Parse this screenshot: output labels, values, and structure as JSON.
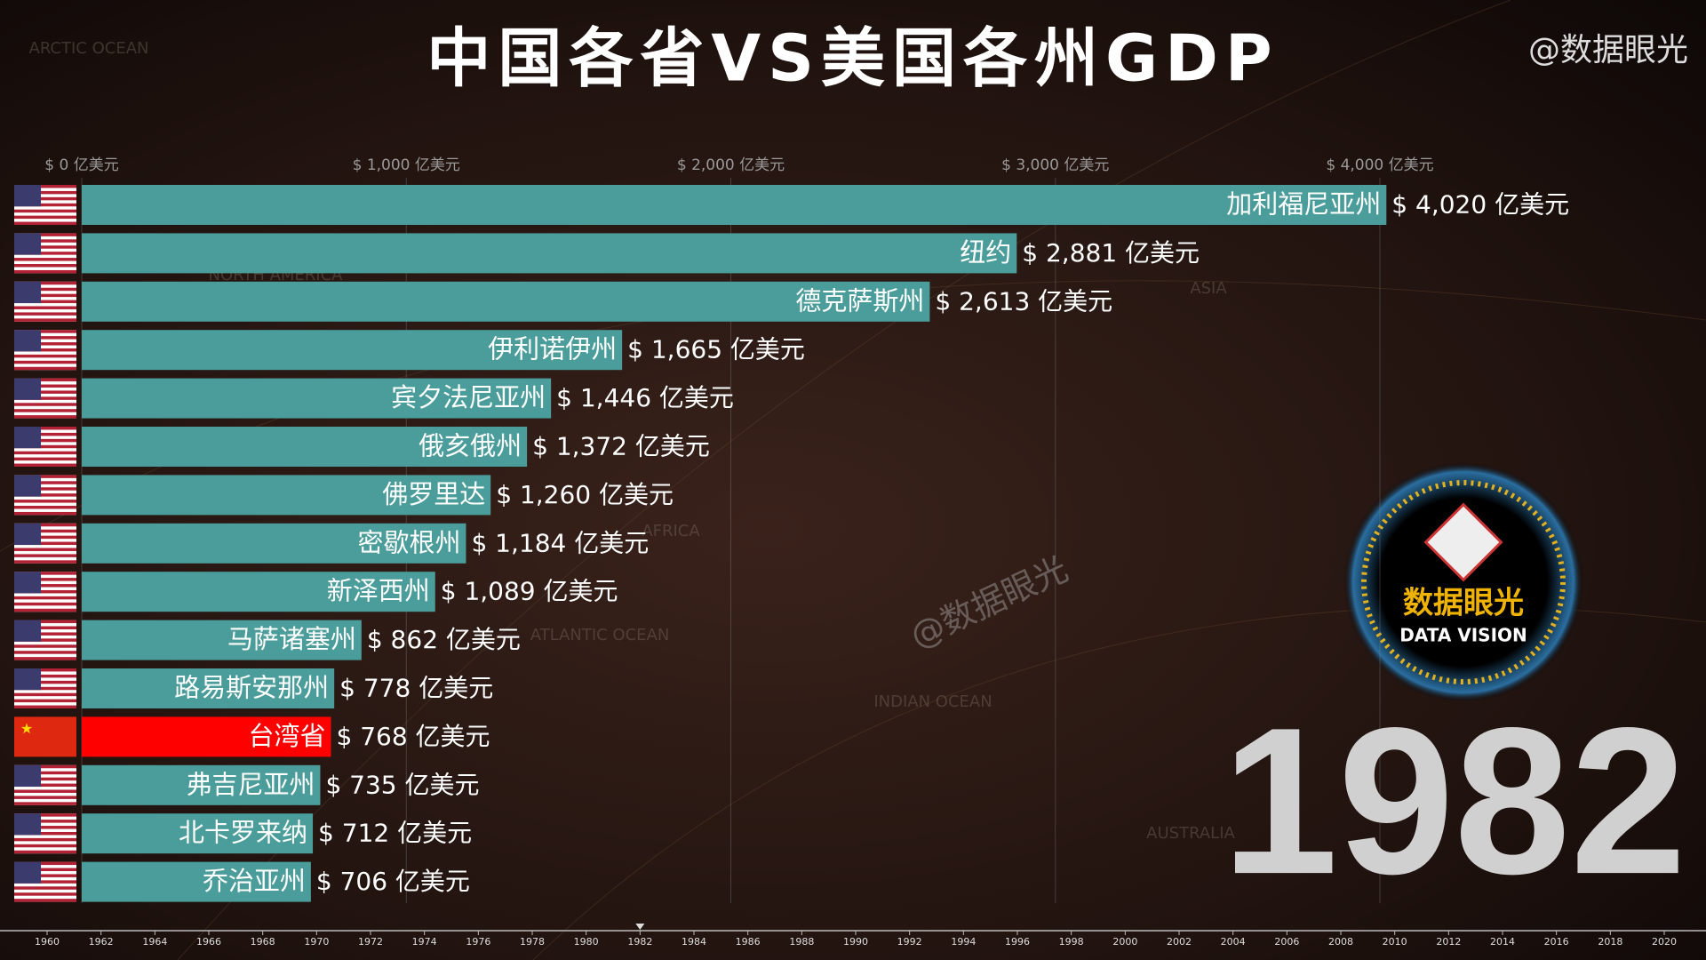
{
  "chart_data": {
    "type": "bar",
    "orientation": "horizontal",
    "title": "中国各省VS美国各州GDP",
    "categories": [
      "加利福尼亚州",
      "纽约",
      "德克萨斯州",
      "伊利诺伊州",
      "宾夕法尼亚州",
      "俄亥俄州",
      "佛罗里达",
      "密歇根州",
      "新泽西州",
      "马萨诸塞州",
      "路易斯安那州",
      "台湾省",
      "弗吉尼亚州",
      "北卡罗来纳",
      "乔治亚州"
    ],
    "values": [
      4020,
      2881,
      2613,
      1665,
      1446,
      1372,
      1260,
      1184,
      1089,
      862,
      778,
      768,
      735,
      712,
      706
    ],
    "value_labels": [
      "$ 4,020 亿美元",
      "$ 2,881 亿美元",
      "$ 2,613 亿美元",
      "$ 1,665 亿美元",
      "$ 1,446 亿美元",
      "$ 1,372 亿美元",
      "$ 1,260 亿美元",
      "$ 1,184 亿美元",
      "$ 1,089 亿美元",
      "$ 862 亿美元",
      "$ 778 亿美元",
      "$ 768 亿美元",
      "$ 735 亿美元",
      "$ 712 亿美元",
      "$ 706 亿美元"
    ],
    "colors": [
      "#4a9d9a",
      "#4a9d9a",
      "#4a9d9a",
      "#4a9d9a",
      "#4a9d9a",
      "#4a9d9a",
      "#4a9d9a",
      "#4a9d9a",
      "#4a9d9a",
      "#4a9d9a",
      "#4a9d9a",
      "#ff0000",
      "#4a9d9a",
      "#4a9d9a",
      "#4a9d9a"
    ],
    "xlim": [
      0,
      4000
    ],
    "xticks": [
      {
        "value": 0,
        "label": "$ 0 亿美元"
      },
      {
        "value": 1000,
        "label": "$ 1,000 亿美元"
      },
      {
        "value": 2000,
        "label": "$ 2,000 亿美元"
      },
      {
        "value": 3000,
        "label": "$ 3,000 亿美元"
      },
      {
        "value": 4000,
        "label": "$ 4,000 亿美元"
      }
    ],
    "grid": true,
    "timeline": {
      "xlim": [
        1960,
        2020
      ],
      "xticks": [
        1960,
        1962,
        1964,
        1966,
        1968,
        1970,
        1972,
        1974,
        1976,
        1978,
        1980,
        1982,
        1984,
        1986,
        1988,
        1990,
        1992,
        1994,
        1996,
        1998,
        2000,
        2002,
        2004,
        2006,
        2008,
        2010,
        2012,
        2014,
        2016,
        2018,
        2020
      ],
      "current": 1982
    },
    "watermark": "@数据眼光",
    "corner_mark": "@数据眼光",
    "logo": {
      "name": "数据眼光",
      "subtitle": "DATA VISION"
    },
    "map_labels": [
      "ARCTIC OCEAN",
      "NORTH AMERICA",
      "ASIA",
      "AFRICA",
      "ATLANTIC OCEAN",
      "INDIAN OCEAN",
      "AUSTRALIA"
    ]
  }
}
